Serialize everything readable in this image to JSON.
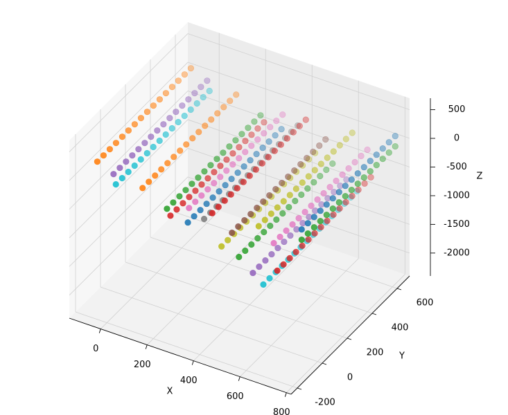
{
  "chart_data": {
    "type": "scatter3d",
    "xlabel": "X",
    "ylabel": "Y",
    "zlabel": "Z",
    "xlim": [
      -135,
      820
    ],
    "ylim": [
      -250,
      700
    ],
    "zlim": [
      -2400,
      700
    ],
    "xticks": [
      0,
      200,
      400,
      600,
      800
    ],
    "yticks": [
      -200,
      0,
      200,
      400,
      600
    ],
    "zticks": [
      -2000,
      -1500,
      -1000,
      -500,
      0,
      500
    ],
    "grid": true,
    "series": [
      {
        "color": "#ff7f0e",
        "x": [
          -95,
          -95,
          -95,
          -95,
          -95,
          -95,
          -95,
          -95,
          -95,
          -95,
          -95,
          -95,
          -95,
          -95,
          -95,
          -95
        ],
        "y": [
          -100,
          -50,
          0,
          50,
          100,
          150,
          200,
          250,
          300,
          350,
          400,
          450,
          500,
          550,
          600,
          650
        ],
        "z": [
          60,
          60,
          60,
          60,
          60,
          60,
          60,
          60,
          60,
          60,
          60,
          60,
          60,
          60,
          60,
          60
        ]
      },
      {
        "color": "#9467bd",
        "x": [
          -25,
          -25,
          -25,
          -25,
          -25,
          -25,
          -25,
          -25,
          -25,
          -25,
          -25,
          -25,
          -25,
          -25,
          -25,
          -25
        ],
        "y": [
          -100,
          -50,
          0,
          50,
          100,
          150,
          200,
          250,
          300,
          350,
          400,
          450,
          500,
          550,
          600,
          650
        ],
        "z": [
          -60,
          -60,
          -60,
          -60,
          -60,
          -60,
          -60,
          -60,
          -60,
          -60,
          -60,
          -60,
          -60,
          -60,
          -60,
          -60
        ]
      },
      {
        "color": "#17becf",
        "x": [
          -15,
          -15,
          -15,
          -15,
          -15,
          -15,
          -15,
          -15,
          -15,
          -15,
          -15,
          -15,
          -15,
          -15,
          -15,
          -15
        ],
        "y": [
          -100,
          -50,
          0,
          50,
          100,
          150,
          200,
          250,
          300,
          350,
          400,
          450,
          500,
          550,
          600,
          650
        ],
        "z": [
          -225,
          -225,
          -225,
          -225,
          -225,
          -225,
          -225,
          -225,
          -225,
          -225,
          -225,
          -225,
          -225,
          -225,
          -225,
          -225
        ]
      },
      {
        "color": "#ff7f0e",
        "x": [
          100,
          100,
          100,
          100,
          100,
          100,
          100,
          100,
          100,
          100,
          100,
          100,
          100,
          100,
          100,
          100
        ],
        "y": [
          -100,
          -50,
          0,
          50,
          100,
          150,
          200,
          250,
          300,
          350,
          400,
          450,
          500,
          550,
          600,
          650
        ],
        "z": [
          -130,
          -130,
          -130,
          -130,
          -130,
          -130,
          -130,
          -130,
          -130,
          -130,
          -130,
          -130,
          -130,
          -130,
          -130,
          -130
        ]
      },
      {
        "color": "#2ca02c",
        "x": [
          205,
          205,
          205,
          205,
          205,
          205,
          205,
          205,
          205,
          205,
          205,
          205,
          205,
          205,
          205,
          205
        ],
        "y": [
          -100,
          -50,
          0,
          50,
          100,
          150,
          200,
          250,
          300,
          350,
          400,
          450,
          500,
          550,
          600,
          650
        ],
        "z": [
          -345,
          -345,
          -345,
          -345,
          -345,
          -345,
          -345,
          -345,
          -345,
          -345,
          -345,
          -345,
          -345,
          -345,
          -345,
          -345
        ]
      },
      {
        "color": "#d62728",
        "x": [
          220,
          220,
          220,
          220,
          220,
          220,
          220,
          220,
          220,
          220,
          220,
          220,
          220,
          220,
          220,
          220
        ],
        "y": [
          -100,
          -50,
          0,
          50,
          100,
          150,
          200,
          250,
          300,
          350,
          400,
          450,
          500,
          550,
          600,
          650
        ],
        "z": [
          -445,
          -445,
          -445,
          -445,
          -445,
          -445,
          -445,
          -445,
          -445,
          -445,
          -445,
          -445,
          -445,
          -445,
          -445,
          -445
        ]
      },
      {
        "color": "#1f77b4",
        "x": [
          295,
          295,
          295,
          295,
          295,
          295,
          295,
          295,
          295,
          295,
          295,
          295,
          295,
          295,
          295,
          295
        ],
        "y": [
          -100,
          -50,
          0,
          50,
          100,
          150,
          200,
          250,
          300,
          350,
          400,
          450,
          500,
          550,
          600,
          650
        ],
        "z": [
          -460,
          -460,
          -460,
          -460,
          -460,
          -460,
          -460,
          -460,
          -460,
          -460,
          -460,
          -460,
          -460,
          -460,
          -460,
          -460
        ]
      },
      {
        "color": "#e377c2",
        "x": [
          300,
          300,
          300,
          300,
          300,
          300,
          300,
          300,
          300,
          300,
          300,
          300,
          300,
          300,
          300,
          300
        ],
        "y": [
          -100,
          -50,
          0,
          50,
          100,
          150,
          200,
          250,
          300,
          350,
          400,
          450,
          500,
          550,
          600,
          650
        ],
        "z": [
          -200,
          -200,
          -200,
          -200,
          -200,
          -200,
          -200,
          -200,
          -200,
          -200,
          -200,
          -200,
          -200,
          -200,
          -200,
          -200
        ]
      },
      {
        "color": "#7f7f7f",
        "x": [
          365,
          365,
          365,
          365,
          365,
          365,
          365,
          365,
          365,
          365,
          365,
          365,
          365,
          365,
          365,
          365
        ],
        "y": [
          -100,
          -50,
          0,
          50,
          100,
          150,
          200,
          250,
          300,
          350,
          400,
          450,
          500,
          550,
          600,
          650
        ],
        "z": [
          -300,
          -300,
          -300,
          -300,
          -300,
          -300,
          -300,
          -300,
          -300,
          -300,
          -300,
          -300,
          -300,
          -300,
          -300,
          -300
        ]
      },
      {
        "color": "#d62728",
        "x": [
          400,
          400,
          400,
          400,
          400,
          400,
          400,
          400,
          400,
          400,
          400,
          400,
          400,
          400,
          400,
          400
        ],
        "y": [
          -100,
          -50,
          0,
          50,
          100,
          150,
          200,
          250,
          300,
          350,
          400,
          450,
          500,
          550,
          600,
          650
        ],
        "z": [
          -150,
          -150,
          -150,
          -150,
          -150,
          -150,
          -150,
          -150,
          -150,
          -150,
          -150,
          -150,
          -150,
          -150,
          -150,
          -150
        ]
      },
      {
        "color": "#8c564b",
        "x": [
          485,
          485,
          485,
          485,
          485,
          485,
          485,
          485,
          485,
          485,
          485,
          485,
          485,
          485,
          485,
          485
        ],
        "y": [
          -100,
          -50,
          0,
          50,
          100,
          150,
          200,
          250,
          300,
          350,
          400,
          450,
          500,
          550,
          600,
          650
        ],
        "z": [
          -375,
          -375,
          -375,
          -375,
          -375,
          -375,
          -375,
          -375,
          -375,
          -375,
          -375,
          -375,
          -375,
          -375,
          -375,
          -375
        ]
      },
      {
        "color": "#bcbd22",
        "x": [
          440,
          440,
          440,
          440,
          440,
          440,
          440,
          440,
          440,
          440,
          440,
          440,
          440,
          440,
          440,
          440
        ],
        "y": [
          -100,
          -50,
          0,
          50,
          100,
          150,
          200,
          250,
          300,
          350,
          400,
          450,
          500,
          550,
          600,
          650
        ],
        "z": [
          -675,
          -675,
          -675,
          -675,
          -675,
          -675,
          -675,
          -675,
          -675,
          -675,
          -675,
          -675,
          -675,
          -675,
          -675,
          -675
        ]
      },
      {
        "color": "#2ca02c",
        "x": [
          515,
          515,
          515,
          515,
          515,
          515,
          515,
          515,
          515,
          515,
          515,
          515,
          515,
          515,
          515,
          515
        ],
        "y": [
          -100,
          -50,
          0,
          50,
          100,
          150,
          200,
          250,
          300,
          350,
          400,
          450,
          500,
          550,
          600,
          650
        ],
        "z": [
          -755,
          -755,
          -755,
          -755,
          -755,
          -755,
          -755,
          -755,
          -755,
          -755,
          -755,
          -755,
          -755,
          -755,
          -755,
          -755
        ]
      },
      {
        "color": "#bcbd22",
        "x": [
          600,
          600,
          600,
          600,
          600,
          600,
          600,
          600,
          600,
          600,
          600,
          600,
          600,
          600,
          600,
          600
        ],
        "y": [
          -100,
          -50,
          0,
          50,
          100,
          150,
          200,
          250,
          300,
          350,
          400,
          450,
          500,
          550,
          600,
          650
        ],
        "z": [
          -100,
          -100,
          -100,
          -100,
          -100,
          -100,
          -100,
          -100,
          -100,
          -100,
          -100,
          -100,
          -100,
          -100,
          -100,
          -100
        ]
      },
      {
        "color": "#e377c2",
        "x": [
          665,
          665,
          665,
          665,
          665,
          665,
          665,
          665,
          665,
          665,
          665,
          665,
          665,
          665,
          665,
          665
        ],
        "y": [
          -100,
          -50,
          0,
          50,
          100,
          150,
          200,
          250,
          300,
          350,
          400,
          450,
          500,
          550,
          600,
          650
        ],
        "z": [
          -305,
          -305,
          -305,
          -305,
          -305,
          -305,
          -305,
          -305,
          -305,
          -305,
          -305,
          -305,
          -305,
          -305,
          -305,
          -305
        ]
      },
      {
        "color": "#9467bd",
        "x": [
          575,
          575,
          575,
          575,
          575,
          575,
          575,
          575,
          575,
          575,
          575,
          575,
          575,
          575,
          575,
          575
        ],
        "y": [
          -100,
          -50,
          0,
          50,
          100,
          150,
          200,
          250,
          300,
          350,
          400,
          450,
          500,
          550,
          600,
          650
        ],
        "z": [
          -950,
          -950,
          -950,
          -950,
          -950,
          -950,
          -950,
          -950,
          -950,
          -950,
          -950,
          -950,
          -950,
          -950,
          -950,
          -950
        ]
      },
      {
        "color": "#d62728",
        "x": [
          680,
          680,
          680,
          680,
          680,
          680,
          680,
          680,
          680,
          680,
          680,
          680,
          680,
          680,
          680,
          680
        ],
        "y": [
          -100,
          -50,
          0,
          50,
          100,
          150,
          200,
          250,
          300,
          350,
          400,
          450,
          500,
          550,
          600,
          650
        ],
        "z": [
          -765,
          -765,
          -765,
          -765,
          -765,
          -765,
          -765,
          -765,
          -765,
          -765,
          -765,
          -765,
          -765,
          -765,
          -765,
          -765
        ]
      },
      {
        "color": "#17becf",
        "x": [
          620,
          620,
          620,
          620,
          620,
          620,
          620,
          620,
          620,
          620,
          620,
          620,
          620,
          620,
          620,
          620
        ],
        "y": [
          -100,
          -50,
          0,
          50,
          100,
          150,
          200,
          250,
          300,
          350,
          400,
          450,
          500,
          550,
          600,
          650
        ],
        "z": [
          -1090,
          -1090,
          -1090,
          -1090,
          -1090,
          -1090,
          -1090,
          -1090,
          -1090,
          -1090,
          -1090,
          -1090,
          -1090,
          -1090,
          -1090,
          -1090
        ]
      },
      {
        "color": "#1f77b4",
        "x": [
          785,
          785,
          785,
          785,
          785,
          785,
          785,
          785,
          785,
          785,
          785,
          785,
          785,
          785,
          785,
          785
        ],
        "y": [
          -100,
          -50,
          0,
          50,
          100,
          150,
          200,
          250,
          300,
          350,
          400,
          450,
          500,
          550,
          600,
          650
        ],
        "z": [
          100,
          100,
          100,
          100,
          100,
          100,
          100,
          100,
          100,
          100,
          100,
          100,
          100,
          100,
          100,
          100
        ]
      },
      {
        "color": "#2ca02c",
        "x": [
          785,
          785,
          785,
          785,
          785,
          785,
          785,
          785,
          785,
          785,
          785,
          785,
          785,
          785,
          785,
          785
        ],
        "y": [
          -100,
          -50,
          0,
          50,
          100,
          150,
          200,
          250,
          300,
          350,
          400,
          450,
          500,
          550,
          600,
          650
        ],
        "z": [
          -80,
          -80,
          -80,
          -80,
          -80,
          -80,
          -80,
          -80,
          -80,
          -80,
          -80,
          -80,
          -80,
          -80,
          -80,
          -80
        ]
      }
    ]
  }
}
